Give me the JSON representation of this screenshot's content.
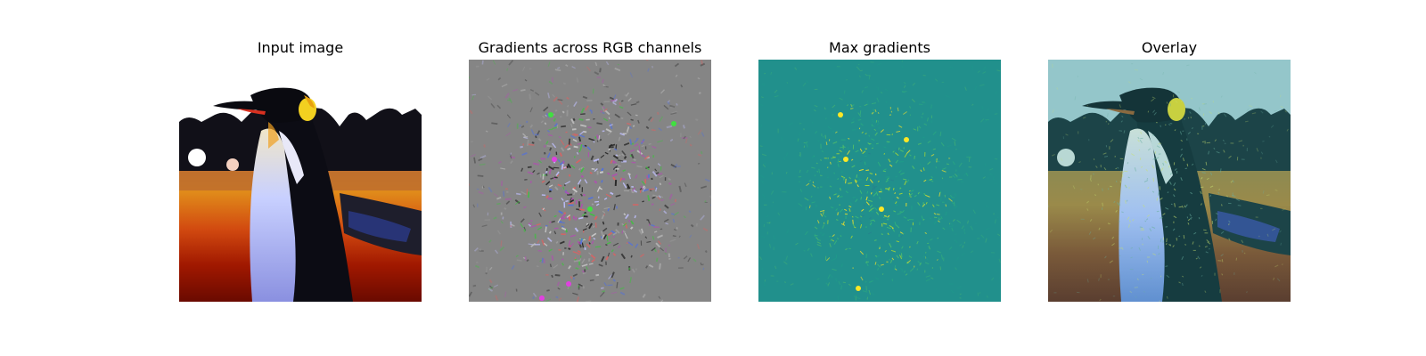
{
  "figure": {
    "panels": [
      {
        "title": "Input image",
        "content": "penguin-photo"
      },
      {
        "title": "Gradients across RGB channels",
        "content": "rgb-gradient-noise"
      },
      {
        "title": "Max gradients",
        "content": "max-gradient-map"
      },
      {
        "title": "Overlay",
        "content": "overlay-image"
      }
    ],
    "colors": {
      "gradient_gray": "#808080",
      "viridis_teal": "#21908c",
      "viridis_yellow": "#fde725",
      "viridis_green": "#5ec962",
      "overlay_tint": "#8fc4c8"
    }
  }
}
